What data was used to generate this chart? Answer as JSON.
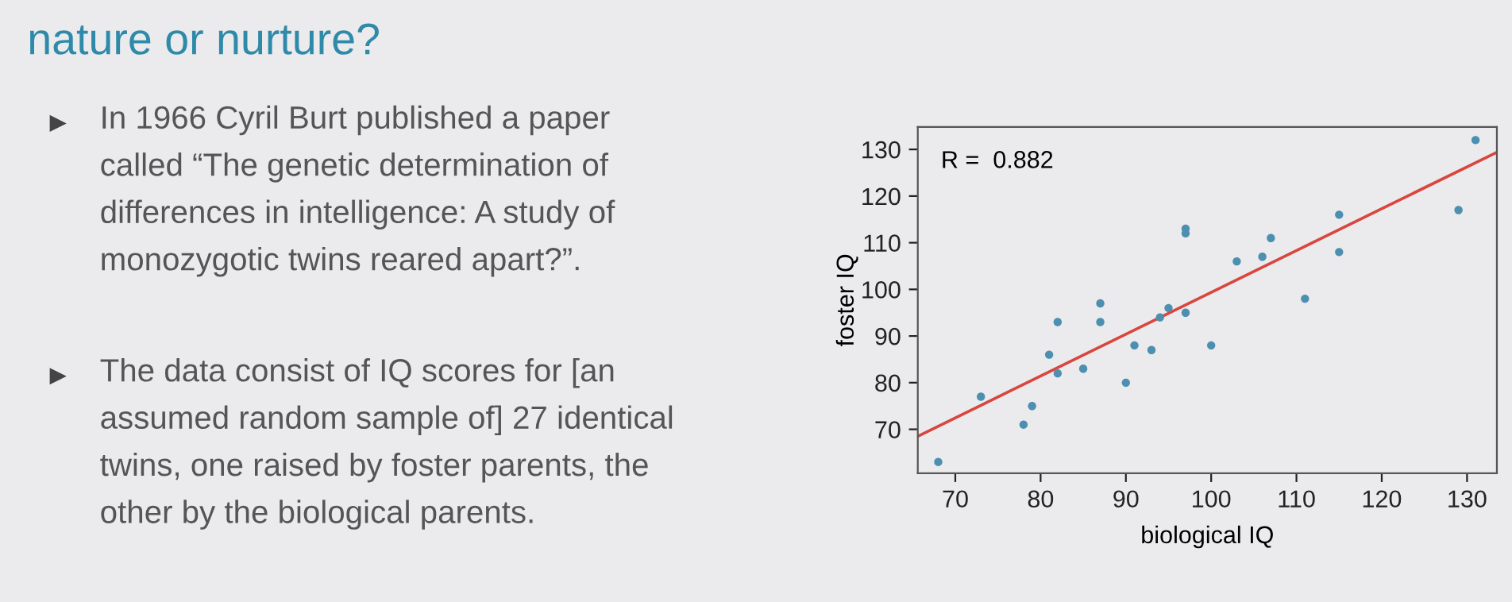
{
  "chart_data": {
    "type": "scatter",
    "title": "nature or nurture?",
    "xlabel": "biological IQ",
    "ylabel": "foster IQ",
    "annotations": [
      "In 1966 Cyril Burt published a paper\ncalled “The genetic determination of\ndifferences in intelligence: A study of\nmonozygotic twins reared apart?”.",
      "The data consist of IQ scores for [an\nassumed random sample of] 27 identical\ntwins, one raised by foster parents, the\nother by the biological parents.",
      "R =  0.882"
    ],
    "series": [
      {
        "color": "#4d8fb0",
        "marker": "circle",
        "x": [
          68,
          73,
          78,
          79,
          81,
          82,
          82,
          85,
          87,
          87,
          90,
          91,
          93,
          94,
          95,
          97,
          97,
          97,
          100,
          103,
          106,
          107,
          111,
          115,
          115,
          129,
          131
        ],
        "values": [
          63,
          77,
          71,
          75,
          86,
          82,
          93,
          83,
          93,
          97,
          80,
          88,
          87,
          94,
          96,
          95,
          112,
          113,
          88,
          106,
          107,
          111,
          98,
          108,
          116,
          117,
          132
        ]
      },
      {
        "type": "line",
        "color": "#d9463e",
        "x": [
          65.6,
          133.5
        ],
        "values": [
          68.5,
          129.4
        ]
      }
    ],
    "xlim": [
      65.6,
      133.5
    ],
    "ylim": [
      60.6,
      134.8
    ],
    "xticks": [
      70,
      80,
      90,
      100,
      110,
      120,
      130
    ],
    "yticks": [
      70,
      80,
      90,
      100,
      110,
      120,
      130
    ],
    "grid": false,
    "legend": false
  }
}
